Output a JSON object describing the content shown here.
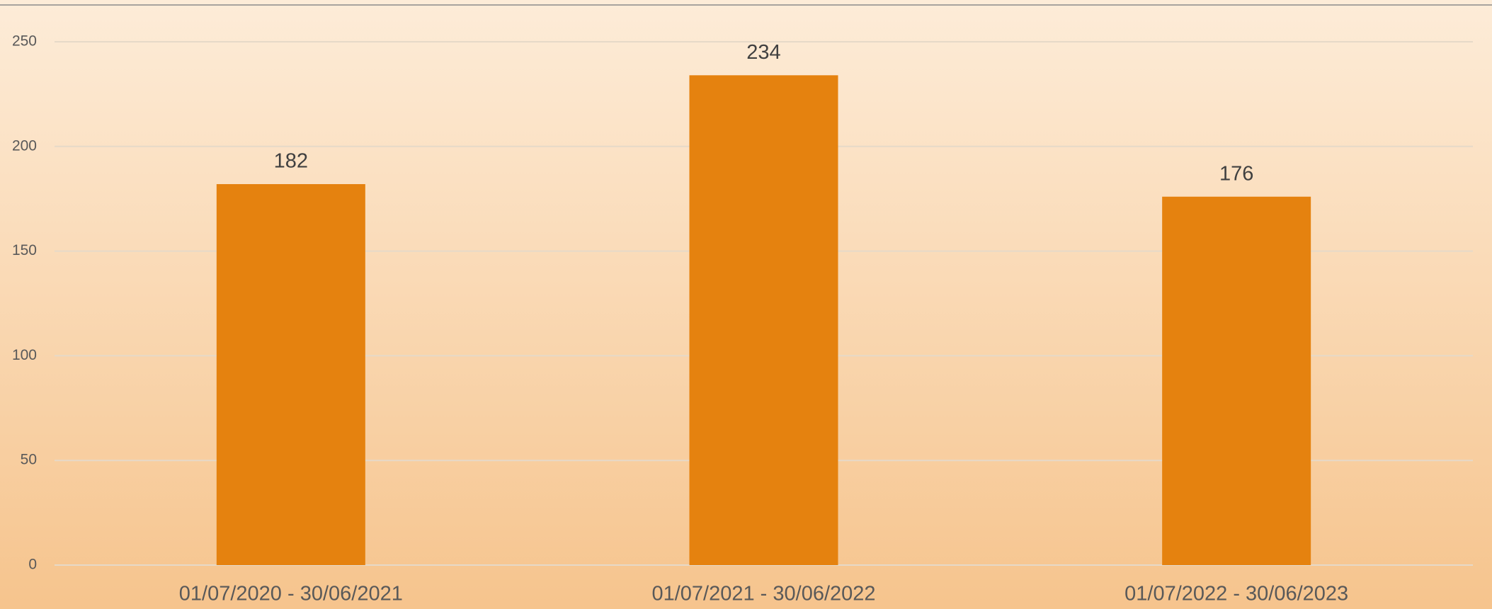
{
  "chart_data": {
    "type": "bar",
    "categories": [
      "01/07/2020 - 30/06/2021",
      "01/07/2021 - 30/06/2022",
      "01/07/2022 - 30/06/2023"
    ],
    "values": [
      182,
      234,
      176
    ],
    "color": "#e5820f",
    "ylim": [
      0,
      250
    ],
    "yticks": [
      0,
      50,
      100,
      150,
      200,
      250
    ],
    "grid": true
  }
}
